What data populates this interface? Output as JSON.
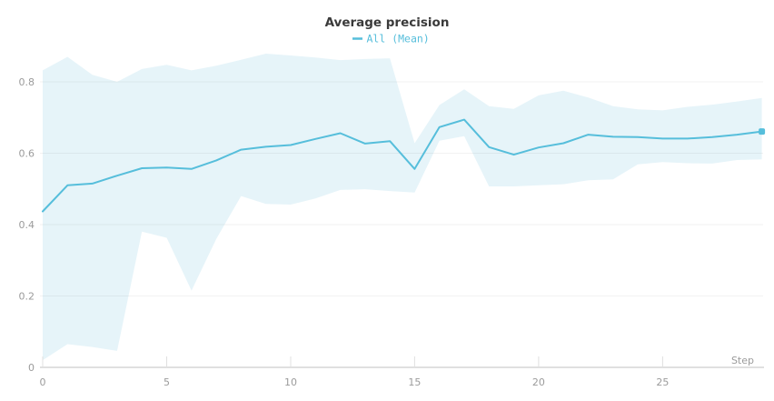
{
  "panel": {
    "title": "Average precision"
  },
  "legend": {
    "label": "All (Mean)",
    "swatch_icon": "dash-swatch"
  },
  "colors": {
    "accent": "#56bedb",
    "band_fill": "#e6f4f9",
    "grid_line": "rgba(0,0,0,0.05)",
    "axis_line": "#e0e0e0",
    "tick_text": "#9b9b9b",
    "title_text": "#3a3a3a"
  },
  "chart_data": {
    "type": "line",
    "title": "Average precision",
    "xlabel": "Step",
    "ylabel": "",
    "xlim": [
      0,
      29
    ],
    "ylim": [
      0,
      0.8
    ],
    "x_ticks": [
      0,
      5,
      10,
      15,
      20,
      25
    ],
    "y_ticks": [
      0,
      0.2,
      0.4,
      0.6,
      0.8
    ],
    "grid": "horizontal-only",
    "legend_position": "top-center",
    "x": [
      0,
      1,
      2,
      3,
      4,
      5,
      6,
      7,
      8,
      9,
      10,
      11,
      12,
      13,
      14,
      15,
      16,
      17,
      18,
      19,
      20,
      21,
      22,
      23,
      24,
      25,
      26,
      27,
      28,
      29
    ],
    "series": [
      {
        "name": "All (Mean)",
        "values": [
          0.437,
          0.51,
          0.515,
          0.537,
          0.558,
          0.56,
          0.556,
          0.58,
          0.61,
          0.618,
          0.623,
          0.64,
          0.656,
          0.627,
          0.634,
          0.556,
          0.673,
          0.694,
          0.617,
          0.596,
          0.616,
          0.628,
          0.652,
          0.646,
          0.645,
          0.641,
          0.641,
          0.645,
          0.652,
          0.661
        ],
        "end_marker": true
      }
    ],
    "band": {
      "name": "All (min/max range)",
      "upper": [
        0.832,
        0.87,
        0.82,
        0.8,
        0.836,
        0.848,
        0.832,
        0.845,
        0.862,
        0.879,
        0.874,
        0.868,
        0.861,
        0.864,
        0.866,
        0.628,
        0.735,
        0.779,
        0.732,
        0.724,
        0.762,
        0.775,
        0.756,
        0.732,
        0.723,
        0.72,
        0.73,
        0.736,
        0.745,
        0.755
      ],
      "lower": [
        0.02,
        0.065,
        0.057,
        0.046,
        0.38,
        0.363,
        0.215,
        0.36,
        0.48,
        0.458,
        0.456,
        0.473,
        0.497,
        0.499,
        0.494,
        0.49,
        0.635,
        0.648,
        0.507,
        0.507,
        0.51,
        0.513,
        0.524,
        0.527,
        0.569,
        0.575,
        0.572,
        0.571,
        0.581,
        0.583
      ]
    }
  }
}
